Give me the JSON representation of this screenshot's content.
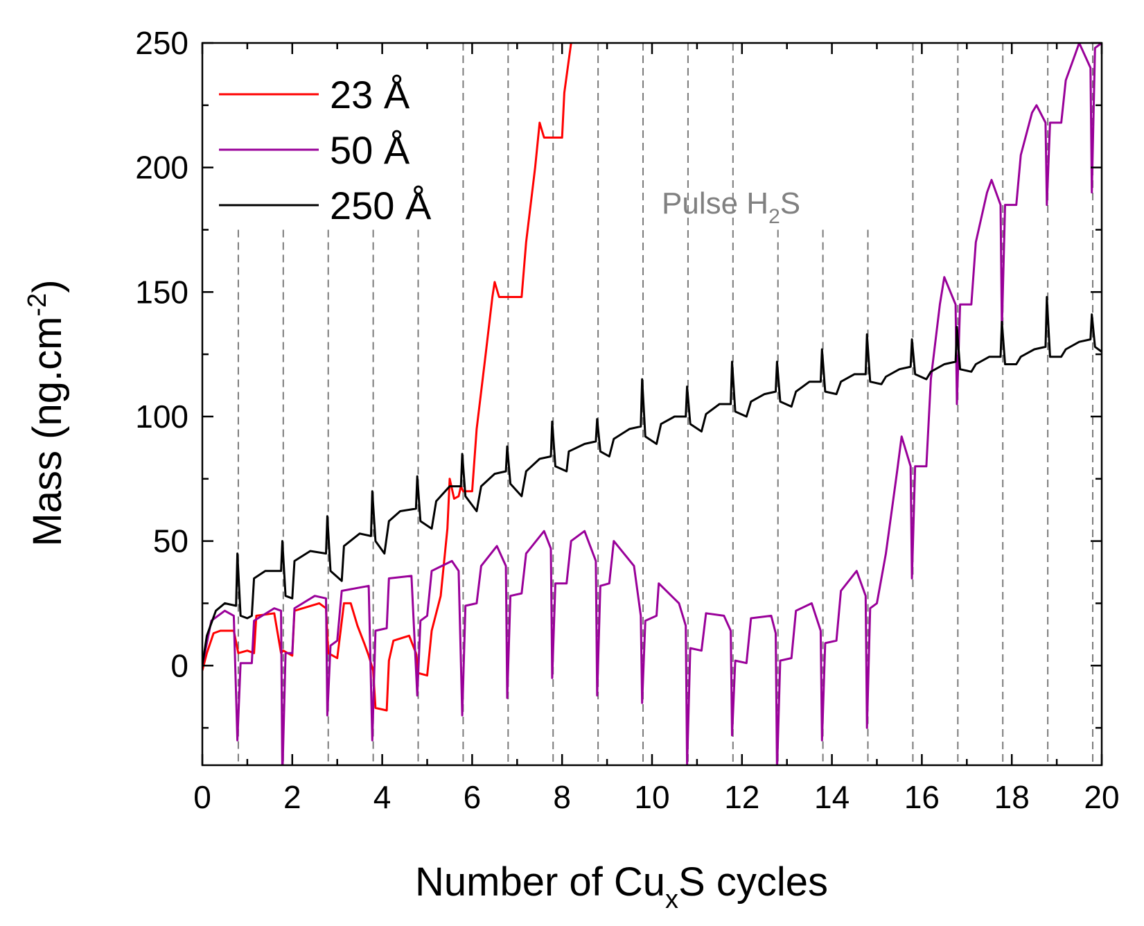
{
  "chart_data": {
    "type": "line",
    "xlabel": {
      "pre": "Number of Cu",
      "sub": "x",
      "post": "S cycles"
    },
    "ylabel": {
      "pre": "Mass (ng.cm",
      "sup": "-2",
      "post": ")"
    },
    "xlim": [
      0,
      20
    ],
    "ylim": [
      -40,
      250
    ],
    "xticks": [
      0,
      2,
      4,
      6,
      8,
      10,
      12,
      14,
      16,
      18,
      20
    ],
    "yticks": [
      0,
      50,
      100,
      150,
      200,
      250
    ],
    "legend_position": "top-left",
    "annotation": {
      "pre": "Pulse H",
      "sub": "2",
      "post": "S"
    },
    "pulse_lines_x": [
      0.8,
      1.8,
      2.8,
      3.8,
      4.8,
      5.8,
      6.8,
      7.8,
      8.8,
      9.8,
      10.8,
      11.8,
      12.8,
      13.8,
      14.8,
      15.8,
      16.8,
      17.8,
      18.8,
      19.8
    ],
    "grid": false,
    "series": [
      {
        "name": "23 Å",
        "color": "#ff0000",
        "points": [
          [
            0,
            -2
          ],
          [
            0.1,
            5
          ],
          [
            0.25,
            13
          ],
          [
            0.4,
            14
          ],
          [
            0.7,
            14
          ],
          [
            0.8,
            5
          ],
          [
            1.0,
            6
          ],
          [
            1.15,
            5
          ],
          [
            1.2,
            20
          ],
          [
            1.6,
            21
          ],
          [
            1.75,
            5
          ],
          [
            1.8,
            6
          ],
          [
            2.0,
            4
          ],
          [
            2.05,
            22
          ],
          [
            2.6,
            25
          ],
          [
            2.75,
            23
          ],
          [
            2.8,
            5
          ],
          [
            3.0,
            3
          ],
          [
            3.15,
            25
          ],
          [
            3.3,
            25
          ],
          [
            3.45,
            16
          ],
          [
            3.6,
            9
          ],
          [
            3.7,
            4
          ],
          [
            3.8,
            -2
          ],
          [
            3.85,
            -17
          ],
          [
            4.1,
            -18
          ],
          [
            4.15,
            2
          ],
          [
            4.25,
            10
          ],
          [
            4.6,
            12
          ],
          [
            4.75,
            5
          ],
          [
            4.8,
            -3
          ],
          [
            5.0,
            -4
          ],
          [
            5.1,
            14
          ],
          [
            5.3,
            28
          ],
          [
            5.45,
            55
          ],
          [
            5.5,
            75
          ],
          [
            5.6,
            67
          ],
          [
            5.7,
            68
          ],
          [
            5.75,
            72
          ],
          [
            5.8,
            70
          ],
          [
            6.0,
            70
          ],
          [
            6.1,
            95
          ],
          [
            6.3,
            125
          ],
          [
            6.45,
            148
          ],
          [
            6.5,
            154
          ],
          [
            6.6,
            148
          ],
          [
            7.1,
            148
          ],
          [
            7.2,
            170
          ],
          [
            7.4,
            200
          ],
          [
            7.5,
            218
          ],
          [
            7.6,
            212
          ],
          [
            8.0,
            212
          ],
          [
            8.05,
            230
          ],
          [
            8.2,
            250
          ]
        ]
      },
      {
        "name": "50 Å",
        "color": "#990099",
        "points": [
          [
            0,
            0
          ],
          [
            0.2,
            18
          ],
          [
            0.5,
            22
          ],
          [
            0.7,
            20
          ],
          [
            0.78,
            -30
          ],
          [
            0.85,
            1
          ],
          [
            1.1,
            1
          ],
          [
            1.15,
            18
          ],
          [
            1.6,
            23
          ],
          [
            1.75,
            22
          ],
          [
            1.78,
            -45
          ],
          [
            1.85,
            5
          ],
          [
            2.0,
            5
          ],
          [
            2.05,
            23
          ],
          [
            2.5,
            28
          ],
          [
            2.75,
            27
          ],
          [
            2.78,
            -20
          ],
          [
            2.85,
            8
          ],
          [
            3.0,
            10
          ],
          [
            3.1,
            30
          ],
          [
            3.7,
            32
          ],
          [
            3.78,
            -30
          ],
          [
            3.85,
            14
          ],
          [
            4.1,
            15
          ],
          [
            4.15,
            35
          ],
          [
            4.65,
            36
          ],
          [
            4.78,
            -12
          ],
          [
            4.85,
            18
          ],
          [
            5.0,
            20
          ],
          [
            5.1,
            38
          ],
          [
            5.55,
            42
          ],
          [
            5.7,
            38
          ],
          [
            5.78,
            -20
          ],
          [
            5.85,
            24
          ],
          [
            6.1,
            25
          ],
          [
            6.2,
            40
          ],
          [
            6.55,
            48
          ],
          [
            6.75,
            40
          ],
          [
            6.78,
            -13
          ],
          [
            6.85,
            28
          ],
          [
            7.1,
            29
          ],
          [
            7.2,
            45
          ],
          [
            7.6,
            54
          ],
          [
            7.75,
            47
          ],
          [
            7.78,
            -5
          ],
          [
            7.85,
            33
          ],
          [
            8.1,
            33
          ],
          [
            8.2,
            50
          ],
          [
            8.5,
            54
          ],
          [
            8.75,
            42
          ],
          [
            8.78,
            -12
          ],
          [
            8.85,
            32
          ],
          [
            9.05,
            33
          ],
          [
            9.15,
            50
          ],
          [
            9.6,
            40
          ],
          [
            9.75,
            20
          ],
          [
            9.78,
            -15
          ],
          [
            9.85,
            18
          ],
          [
            10.1,
            20
          ],
          [
            10.15,
            33
          ],
          [
            10.6,
            25
          ],
          [
            10.75,
            16
          ],
          [
            10.78,
            -40
          ],
          [
            10.85,
            7
          ],
          [
            11.1,
            6
          ],
          [
            11.2,
            21
          ],
          [
            11.6,
            20
          ],
          [
            11.75,
            14
          ],
          [
            11.78,
            -28
          ],
          [
            11.85,
            2
          ],
          [
            12.1,
            1
          ],
          [
            12.2,
            19
          ],
          [
            12.65,
            20
          ],
          [
            12.75,
            13
          ],
          [
            12.78,
            -42
          ],
          [
            12.85,
            2
          ],
          [
            13.1,
            3
          ],
          [
            13.2,
            22
          ],
          [
            13.55,
            25
          ],
          [
            13.75,
            14
          ],
          [
            13.78,
            -30
          ],
          [
            13.85,
            9
          ],
          [
            14.1,
            10
          ],
          [
            14.2,
            30
          ],
          [
            14.55,
            38
          ],
          [
            14.75,
            28
          ],
          [
            14.78,
            -25
          ],
          [
            14.85,
            23
          ],
          [
            15.0,
            25
          ],
          [
            15.2,
            45
          ],
          [
            15.45,
            78
          ],
          [
            15.55,
            92
          ],
          [
            15.75,
            80
          ],
          [
            15.78,
            35
          ],
          [
            15.85,
            80
          ],
          [
            16.1,
            80
          ],
          [
            16.2,
            115
          ],
          [
            16.4,
            145
          ],
          [
            16.5,
            156
          ],
          [
            16.75,
            145
          ],
          [
            16.78,
            105
          ],
          [
            16.85,
            145
          ],
          [
            17.1,
            145
          ],
          [
            17.2,
            170
          ],
          [
            17.45,
            190
          ],
          [
            17.55,
            195
          ],
          [
            17.75,
            185
          ],
          [
            17.78,
            135
          ],
          [
            17.85,
            185
          ],
          [
            18.1,
            185
          ],
          [
            18.2,
            205
          ],
          [
            18.45,
            222
          ],
          [
            18.55,
            225
          ],
          [
            18.75,
            218
          ],
          [
            18.78,
            185
          ],
          [
            18.85,
            218
          ],
          [
            19.1,
            218
          ],
          [
            19.2,
            235
          ],
          [
            19.4,
            245
          ],
          [
            19.5,
            250
          ],
          [
            19.75,
            240
          ],
          [
            19.78,
            190
          ],
          [
            19.85,
            248
          ],
          [
            20.0,
            250
          ]
        ]
      },
      {
        "name": "250 Å",
        "color": "#000000",
        "points": [
          [
            0,
            0
          ],
          [
            0.1,
            12
          ],
          [
            0.3,
            22
          ],
          [
            0.5,
            25
          ],
          [
            0.75,
            24
          ],
          [
            0.78,
            45
          ],
          [
            0.85,
            20
          ],
          [
            1.0,
            19
          ],
          [
            1.1,
            20
          ],
          [
            1.15,
            35
          ],
          [
            1.4,
            38
          ],
          [
            1.75,
            38
          ],
          [
            1.78,
            50
          ],
          [
            1.85,
            28
          ],
          [
            2.0,
            27
          ],
          [
            2.05,
            42
          ],
          [
            2.4,
            46
          ],
          [
            2.75,
            45
          ],
          [
            2.78,
            60
          ],
          [
            2.85,
            38
          ],
          [
            3.1,
            34
          ],
          [
            3.15,
            48
          ],
          [
            3.5,
            53
          ],
          [
            3.75,
            52
          ],
          [
            3.78,
            70
          ],
          [
            3.85,
            50
          ],
          [
            4.05,
            45
          ],
          [
            4.15,
            58
          ],
          [
            4.4,
            62
          ],
          [
            4.75,
            63
          ],
          [
            4.78,
            76
          ],
          [
            4.85,
            58
          ],
          [
            5.1,
            55
          ],
          [
            5.2,
            66
          ],
          [
            5.5,
            72
          ],
          [
            5.75,
            72
          ],
          [
            5.78,
            85
          ],
          [
            5.85,
            68
          ],
          [
            6.1,
            62
          ],
          [
            6.2,
            72
          ],
          [
            6.5,
            77
          ],
          [
            6.75,
            78
          ],
          [
            6.78,
            88
          ],
          [
            6.85,
            73
          ],
          [
            7.1,
            68
          ],
          [
            7.2,
            78
          ],
          [
            7.5,
            83
          ],
          [
            7.75,
            84
          ],
          [
            7.78,
            98
          ],
          [
            7.85,
            80
          ],
          [
            8.1,
            78
          ],
          [
            8.15,
            86
          ],
          [
            8.5,
            89
          ],
          [
            8.75,
            90
          ],
          [
            8.78,
            99
          ],
          [
            8.85,
            86
          ],
          [
            9.05,
            84
          ],
          [
            9.15,
            91
          ],
          [
            9.5,
            95
          ],
          [
            9.75,
            96
          ],
          [
            9.78,
            115
          ],
          [
            9.85,
            92
          ],
          [
            10.1,
            89
          ],
          [
            10.2,
            97
          ],
          [
            10.5,
            100
          ],
          [
            10.75,
            100
          ],
          [
            10.78,
            112
          ],
          [
            10.85,
            97
          ],
          [
            11.1,
            94
          ],
          [
            11.2,
            101
          ],
          [
            11.5,
            105
          ],
          [
            11.75,
            105
          ],
          [
            11.78,
            122
          ],
          [
            11.85,
            102
          ],
          [
            12.1,
            100
          ],
          [
            12.2,
            106
          ],
          [
            12.5,
            109
          ],
          [
            12.75,
            110
          ],
          [
            12.78,
            122
          ],
          [
            12.85,
            106
          ],
          [
            13.1,
            104
          ],
          [
            13.2,
            110
          ],
          [
            13.5,
            114
          ],
          [
            13.75,
            114
          ],
          [
            13.78,
            127
          ],
          [
            13.85,
            110
          ],
          [
            14.1,
            109
          ],
          [
            14.2,
            114
          ],
          [
            14.5,
            117
          ],
          [
            14.75,
            117
          ],
          [
            14.78,
            133
          ],
          [
            14.85,
            114
          ],
          [
            15.1,
            113
          ],
          [
            15.2,
            116
          ],
          [
            15.5,
            119
          ],
          [
            15.75,
            120
          ],
          [
            15.78,
            131
          ],
          [
            15.85,
            117
          ],
          [
            16.1,
            115
          ],
          [
            16.2,
            118
          ],
          [
            16.5,
            121
          ],
          [
            16.75,
            122
          ],
          [
            16.78,
            136
          ],
          [
            16.85,
            119
          ],
          [
            17.1,
            118
          ],
          [
            17.2,
            121
          ],
          [
            17.5,
            124
          ],
          [
            17.75,
            124
          ],
          [
            17.78,
            138
          ],
          [
            17.85,
            121
          ],
          [
            18.1,
            121
          ],
          [
            18.2,
            124
          ],
          [
            18.5,
            127
          ],
          [
            18.75,
            128
          ],
          [
            18.78,
            148
          ],
          [
            18.85,
            124
          ],
          [
            19.1,
            124
          ],
          [
            19.2,
            127
          ],
          [
            19.5,
            130
          ],
          [
            19.75,
            131
          ],
          [
            19.78,
            141
          ],
          [
            19.85,
            128
          ],
          [
            20.0,
            126
          ]
        ]
      }
    ]
  }
}
